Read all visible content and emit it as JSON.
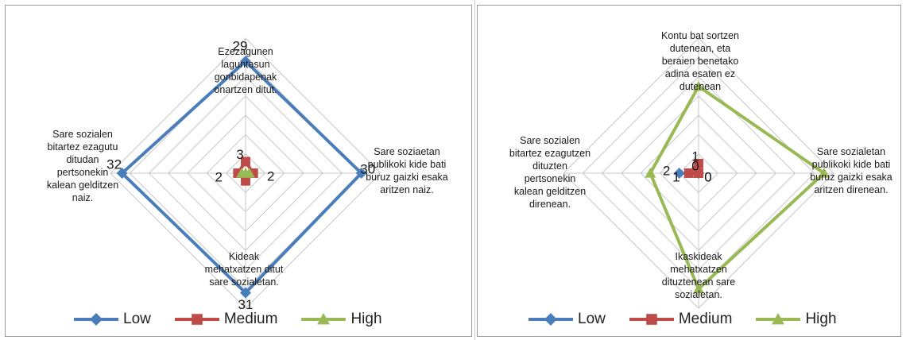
{
  "charts": [
    {
      "axis_labels": [
        [
          "Ezezagunen",
          "laguntasun",
          "gonbidapenak",
          "onartzen ditut."
        ],
        [
          "Sare soziaetan",
          "publikoki kide bati",
          "buruz gaizki esaka",
          "aritzen naiz."
        ],
        [
          "Kideak",
          "mehatxatzen ditut",
          "sare sozialetan."
        ],
        [
          "Sare sozialen",
          "bitartez ezagutu",
          "ditudan",
          "pertsonekin",
          "kalean gelditzen",
          "naiz."
        ]
      ]
    },
    {
      "axis_labels": [
        [
          "Kontu bat sortzen",
          "dutenean, eta",
          "beraien benetako",
          "adina esaten ez",
          "dutenean"
        ],
        [
          "Sare sozialetan",
          "publikoki kide bati",
          "buruz gaizki esaka",
          "aritzen direnean."
        ],
        [
          "Ikaskideak",
          "mehatxatzen",
          "dituztenean sare",
          "sozialetan."
        ],
        [
          "Sare sozialen",
          "bitartez ezagutzen",
          "dituzten",
          "pertsonekin",
          "kalean gelditzen",
          "direnean."
        ]
      ]
    }
  ],
  "chart_data": [
    {
      "type": "radar",
      "categories": [
        "Ezezagunen laguntasun gonbidapenak onartzen ditut.",
        "Sare soziaetan publikoki kide bati buruz gaizki esaka aritzen naiz.",
        "Kideak mehatxatzen ditut sare sozialetan.",
        "Sare sozialen bitartez ezagutu ditudan pertsonekin kalean gelditzen naiz."
      ],
      "series": [
        {
          "name": "Low",
          "values": [
            29,
            30,
            31,
            32
          ],
          "color": "#4a7ebb",
          "marker": "diamond",
          "labels": [
            "29",
            "30",
            "31",
            "32"
          ]
        },
        {
          "name": "Medium",
          "values": [
            3,
            2,
            2,
            2
          ],
          "color": "#be4b48",
          "marker": "square",
          "labels": [
            "3",
            "2",
            "",
            "2"
          ]
        },
        {
          "name": "High",
          "values": [
            0,
            1,
            0,
            1
          ],
          "color": "#98b954",
          "marker": "triangle",
          "labels": [
            "",
            "",
            "",
            ""
          ]
        }
      ],
      "rmax": 35,
      "rings": 7,
      "legend": "bottom",
      "grid": true
    },
    {
      "type": "radar",
      "categories": [
        "Kontu bat sortzen dutenean, eta beraien benetako adina esaten ez dutenean",
        "Sare sozialetan publikoki kide bati buruz gaizki esaka aritzen direnean.",
        "Ikaskideak mehatxatzen dituztenean sare sozialetan.",
        "Sare sozialen bitartez ezagutzen dituzten pertsonekin kalean gelditzen direnean."
      ],
      "series": [
        {
          "name": "Low",
          "values": [
            0,
            0,
            0,
            2
          ],
          "color": "#4a7ebb",
          "marker": "diamond",
          "labels": [
            "0",
            "0",
            "",
            "2"
          ]
        },
        {
          "name": "Medium",
          "values": [
            1,
            0,
            0,
            1
          ],
          "color": "#be4b48",
          "marker": "square",
          "labels": [
            "1",
            "0",
            "",
            "1"
          ]
        },
        {
          "name": "High",
          "values": [
            9,
            13,
            12,
            5
          ],
          "color": "#98b954",
          "marker": "triangle",
          "labels": [
            "",
            "",
            "",
            ""
          ]
        }
      ],
      "rmax": 14,
      "rings": 7,
      "legend": "bottom",
      "grid": true
    }
  ]
}
